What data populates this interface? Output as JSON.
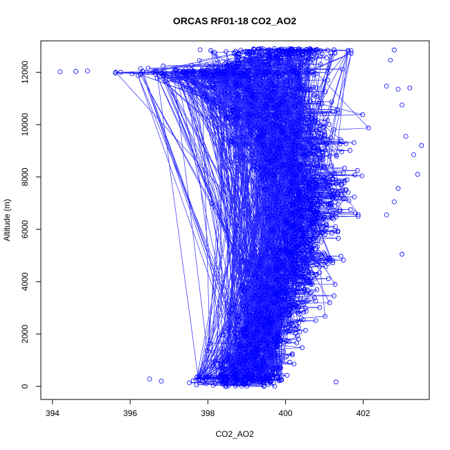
{
  "chart_data": {
    "type": "scatter",
    "title": "ORCAS RF01-18 CO2_AO2",
    "xlabel": "CO2_AO2",
    "ylabel": "Altitude (m)",
    "xlim": [
      393.7,
      403.7
    ],
    "ylim": [
      -500,
      13200
    ],
    "xticks": [
      394,
      396,
      398,
      400,
      402
    ],
    "yticks": [
      0,
      2000,
      4000,
      6000,
      8000,
      10000,
      12000
    ],
    "grid": false,
    "legend": "none",
    "color": "#0000ff",
    "marker": "open-circle",
    "connected": true,
    "series": [
      {
        "profile": [
          {
            "y": 0,
            "x_min": 396.5,
            "x_max": 401.0
          },
          {
            "y": 500,
            "x_min": 397.2,
            "x_max": 400.8
          },
          {
            "y": 1000,
            "x_min": 397.3,
            "x_max": 401.0
          },
          {
            "y": 1500,
            "x_min": 397.4,
            "x_max": 401.2
          },
          {
            "y": 2000,
            "x_min": 397.5,
            "x_max": 401.3
          },
          {
            "y": 2500,
            "x_min": 397.6,
            "x_max": 401.4
          },
          {
            "y": 3000,
            "x_min": 397.8,
            "x_max": 401.6
          },
          {
            "y": 3500,
            "x_min": 397.9,
            "x_max": 401.7
          },
          {
            "y": 4000,
            "x_min": 398.0,
            "x_max": 401.8
          },
          {
            "y": 4500,
            "x_min": 398.2,
            "x_max": 401.9
          },
          {
            "y": 5000,
            "x_min": 398.3,
            "x_max": 402.3
          },
          {
            "y": 5500,
            "x_min": 398.4,
            "x_max": 402.0
          },
          {
            "y": 6000,
            "x_min": 398.5,
            "x_max": 402.3
          },
          {
            "y": 6500,
            "x_min": 398.6,
            "x_max": 402.4
          },
          {
            "y": 7000,
            "x_min": 398.6,
            "x_max": 402.6
          },
          {
            "y": 7500,
            "x_min": 398.4,
            "x_max": 402.7
          },
          {
            "y": 8000,
            "x_min": 398.2,
            "x_max": 402.9
          },
          {
            "y": 8500,
            "x_min": 397.5,
            "x_max": 403.0
          },
          {
            "y": 9000,
            "x_min": 397.2,
            "x_max": 403.1
          },
          {
            "y": 9500,
            "x_min": 397.0,
            "x_max": 403.0
          },
          {
            "y": 10000,
            "x_min": 396.8,
            "x_max": 402.8
          },
          {
            "y": 10500,
            "x_min": 396.6,
            "x_max": 402.8
          },
          {
            "y": 11000,
            "x_min": 396.4,
            "x_max": 402.7
          },
          {
            "y": 11500,
            "x_min": 396.0,
            "x_max": 402.6
          },
          {
            "y": 12000,
            "x_min": 394.2,
            "x_max": 402.5
          },
          {
            "y": 12500,
            "x_min": 396.5,
            "x_max": 402.7
          },
          {
            "y": 12900,
            "x_min": 397.5,
            "x_max": 402.8
          }
        ],
        "outliers": [
          {
            "x": 394.2,
            "y": 12020
          },
          {
            "x": 394.6,
            "y": 12030
          },
          {
            "x": 394.9,
            "y": 12050
          },
          {
            "x": 396.5,
            "y": 280
          },
          {
            "x": 396.8,
            "y": 200
          },
          {
            "x": 397.8,
            "y": 12860
          },
          {
            "x": 398.1,
            "y": 6980
          },
          {
            "x": 402.6,
            "y": 11470
          },
          {
            "x": 402.9,
            "y": 11350
          },
          {
            "x": 403.2,
            "y": 11400
          },
          {
            "x": 403.0,
            "y": 10750
          },
          {
            "x": 403.1,
            "y": 9550
          },
          {
            "x": 403.5,
            "y": 9200
          },
          {
            "x": 403.3,
            "y": 8850
          },
          {
            "x": 403.4,
            "y": 8100
          },
          {
            "x": 402.9,
            "y": 7560
          },
          {
            "x": 402.8,
            "y": 7050
          },
          {
            "x": 402.6,
            "y": 6550
          },
          {
            "x": 403.0,
            "y": 5050
          },
          {
            "x": 402.7,
            "y": 12460
          },
          {
            "x": 402.8,
            "y": 12850
          },
          {
            "x": 401.3,
            "y": 170
          }
        ]
      }
    ]
  }
}
